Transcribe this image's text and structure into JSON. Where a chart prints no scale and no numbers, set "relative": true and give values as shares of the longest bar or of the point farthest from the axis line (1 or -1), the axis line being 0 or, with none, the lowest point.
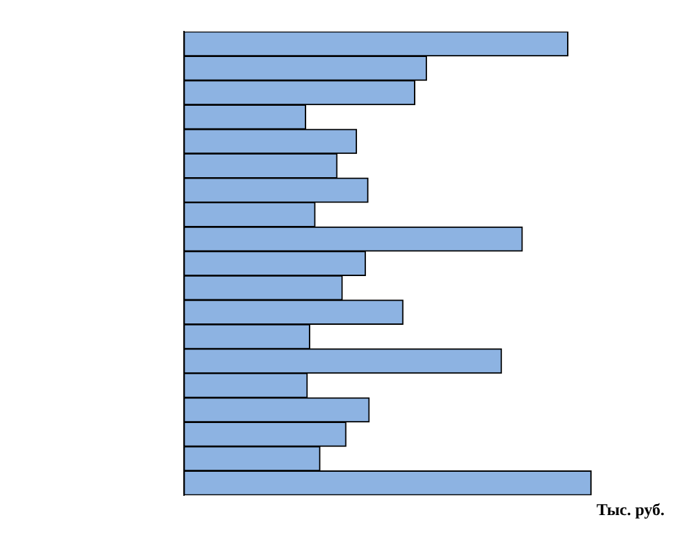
{
  "chart_data": {
    "type": "bar",
    "orientation": "horizontal",
    "relative": true,
    "xlabel": "Тыс. руб.",
    "categories": [
      null,
      null,
      null,
      null,
      null,
      null,
      null,
      null,
      null,
      null,
      null,
      null,
      null,
      null,
      null,
      null,
      null,
      null,
      null
    ],
    "values": [
      0.943,
      0.596,
      0.567,
      0.299,
      0.424,
      0.376,
      0.452,
      0.322,
      0.831,
      0.446,
      0.389,
      0.538,
      0.309,
      0.78,
      0.303,
      0.455,
      0.398,
      0.334,
      1
    ],
    "color": "#8db3e2",
    "grid": false,
    "legend": false
  }
}
